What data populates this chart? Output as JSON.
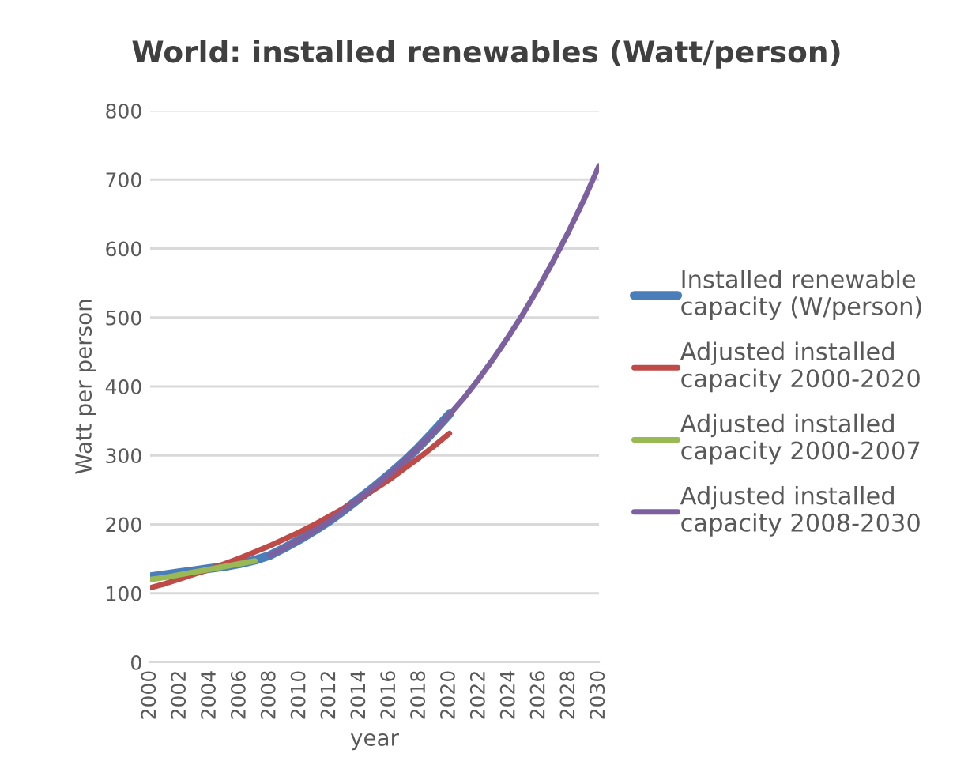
{
  "chart_data": {
    "type": "line",
    "title": "World: installed renewables (Watt/person)",
    "xlabel": "year",
    "ylabel": "Watt per person",
    "x": [
      2000,
      2001,
      2002,
      2003,
      2004,
      2005,
      2006,
      2007,
      2008,
      2009,
      2010,
      2011,
      2012,
      2013,
      2014,
      2015,
      2016,
      2017,
      2018,
      2019,
      2020
    ],
    "series": [
      {
        "name": "Installed renewable capacity (W/person)",
        "color": "#4a7ebb",
        "values": [
          124,
          127,
          130,
          133,
          136,
          139,
          143,
          148,
          155,
          166,
          178,
          191,
          205,
          221,
          238,
          255,
          273,
          292,
          313,
          336,
          360
        ]
      },
      {
        "name": "Adjusted installed capacity 2000-2020",
        "color": "#be4b48",
        "values": [
          108,
          114,
          121,
          128,
          135,
          143,
          151,
          160,
          169,
          179,
          189,
          200,
          212,
          224,
          237,
          251,
          265,
          281,
          297,
          314,
          332
        ]
      },
      {
        "name": "Adjusted installed capacity 2000-2007",
        "color": "#98b954",
        "x": [
          2000,
          2001,
          2002,
          2003,
          2004,
          2005,
          2006,
          2007
        ],
        "values": [
          120,
          123,
          127,
          131,
          135,
          139,
          143,
          147
        ]
      },
      {
        "name": "Adjusted installed capacity 2008-2030",
        "color": "#7d60a0",
        "x": [
          2008,
          2009,
          2010,
          2011,
          2012,
          2013,
          2014,
          2015,
          2016,
          2017,
          2018,
          2019,
          2020,
          2021,
          2022,
          2023,
          2024,
          2025,
          2026,
          2027,
          2028,
          2029,
          2030
        ],
        "values": [
          155,
          166,
          178,
          191,
          205,
          221,
          238,
          255,
          273,
          292,
          313,
          334,
          359,
          384,
          412,
          442,
          474,
          508,
          545,
          584,
          626,
          671,
          720
        ]
      }
    ],
    "xlim": [
      2000,
      2030
    ],
    "xticks": [
      2000,
      2002,
      2004,
      2006,
      2008,
      2010,
      2012,
      2014,
      2016,
      2018,
      2020,
      2022,
      2024,
      2026,
      2028,
      2030
    ],
    "ylim": [
      0,
      800
    ],
    "yticks": [
      0,
      100,
      200,
      300,
      400,
      500,
      600,
      700,
      800
    ],
    "grid": "y",
    "legend": "right",
    "marker": "none",
    "line_style": "solid"
  }
}
